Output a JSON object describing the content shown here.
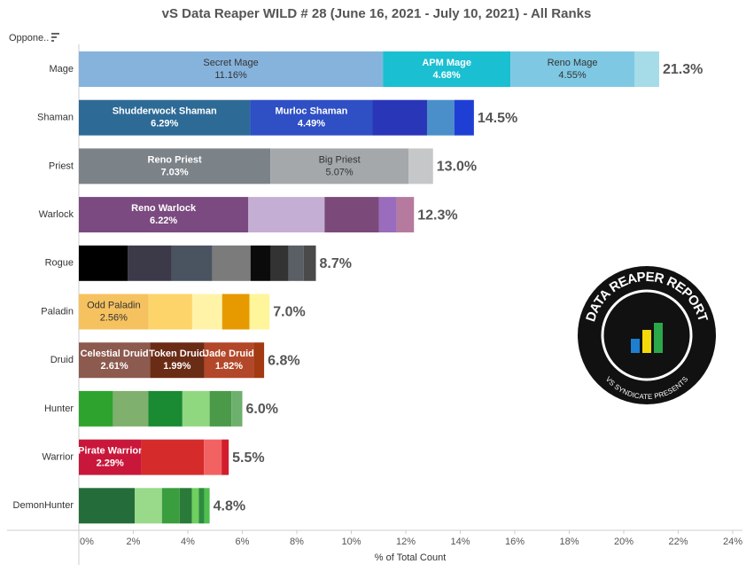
{
  "chart_data": {
    "type": "stacked_bar_horizontal",
    "title": "vS Data Reaper WILD # 28 (June 16, 2021 - July 10, 2021) - All Ranks",
    "sort_label": "Oppone..",
    "xlabel": "% of Total Count",
    "xlim": [
      0,
      24
    ],
    "xticks": [
      {
        "value": 0,
        "label": "0%"
      },
      {
        "value": 2,
        "label": "2%"
      },
      {
        "value": 4,
        "label": "4%"
      },
      {
        "value": 6,
        "label": "6%"
      },
      {
        "value": 8,
        "label": "8%"
      },
      {
        "value": 10,
        "label": "10%"
      },
      {
        "value": 12,
        "label": "12%"
      },
      {
        "value": 14,
        "label": "14%"
      },
      {
        "value": 16,
        "label": "16%"
      },
      {
        "value": 18,
        "label": "18%"
      },
      {
        "value": 20,
        "label": "20%"
      },
      {
        "value": 22,
        "label": "22%"
      },
      {
        "value": 24,
        "label": "24%"
      }
    ],
    "bars": [
      {
        "category": "Mage",
        "total": 21.3,
        "total_label": "21.3%",
        "segments": [
          {
            "name": "Secret Mage",
            "value": 11.16,
            "value_label": "11.16%",
            "color": "#86b3dc"
          },
          {
            "name": "APM Mage",
            "value": 4.68,
            "value_label": "4.68%",
            "color": "#1abfd1"
          },
          {
            "name": "Reno Mage",
            "value": 4.55,
            "value_label": "4.55%",
            "color": "#7ec8e3"
          },
          {
            "value": 0.91,
            "color": "#a6dbe8"
          }
        ]
      },
      {
        "category": "Shaman",
        "total": 14.5,
        "total_label": "14.5%",
        "segments": [
          {
            "name": "Shudderwock Shaman",
            "value": 6.29,
            "value_label": "6.29%",
            "color": "#2d6a96"
          },
          {
            "name": "Murloc Shaman",
            "value": 4.49,
            "value_label": "4.49%",
            "color": "#2f4fc4"
          },
          {
            "value": 2.0,
            "color": "#2a36b8"
          },
          {
            "value": 1.0,
            "color": "#4a8fc9"
          },
          {
            "value": 0.72,
            "color": "#1f3fd4"
          }
        ]
      },
      {
        "category": "Priest",
        "total": 13.0,
        "total_label": "13.0%",
        "segments": [
          {
            "name": "Reno Priest",
            "value": 7.03,
            "value_label": "7.03%",
            "color": "#7b8288"
          },
          {
            "name": "Big Priest",
            "value": 5.07,
            "value_label": "5.07%",
            "color": "#a4a8ab"
          },
          {
            "value": 0.9,
            "color": "#c5c7c9"
          }
        ]
      },
      {
        "category": "Warlock",
        "total": 12.3,
        "total_label": "12.3%",
        "segments": [
          {
            "name": "Reno Warlock",
            "value": 6.22,
            "value_label": "6.22%",
            "color": "#7b4a80"
          },
          {
            "value": 2.8,
            "color": "#c5aed3"
          },
          {
            "value": 2.0,
            "color": "#7b4a7a"
          },
          {
            "value": 0.65,
            "color": "#9a6cbd"
          },
          {
            "value": 0.63,
            "color": "#b57a9e"
          }
        ]
      },
      {
        "category": "Rogue",
        "total": 8.7,
        "total_label": "8.7%",
        "segments": [
          {
            "value": 1.8,
            "color": "#000000"
          },
          {
            "value": 1.6,
            "color": "#3c3a48"
          },
          {
            "value": 1.5,
            "color": "#4a5360"
          },
          {
            "value": 1.4,
            "color": "#7b7b7b"
          },
          {
            "value": 0.75,
            "color": "#0b0b0b"
          },
          {
            "value": 0.65,
            "color": "#333333"
          },
          {
            "value": 0.55,
            "color": "#5a5f66"
          },
          {
            "value": 0.45,
            "color": "#4a4a4a"
          }
        ]
      },
      {
        "category": "Paladin",
        "total": 7.0,
        "total_label": "7.0%",
        "segments": [
          {
            "name": "Odd Paladin",
            "value": 2.56,
            "value_label": "2.56%",
            "color": "#f6c25f"
          },
          {
            "value": 1.6,
            "color": "#fdd46a"
          },
          {
            "value": 1.1,
            "color": "#fff3a8"
          },
          {
            "value": 1.0,
            "color": "#e69a00"
          },
          {
            "value": 0.74,
            "color": "#fff59a"
          }
        ]
      },
      {
        "category": "Druid",
        "total": 6.8,
        "total_label": "6.8%",
        "segments": [
          {
            "name": "Celestial Druid",
            "value": 2.61,
            "value_label": "2.61%",
            "color": "#8c5a4e"
          },
          {
            "name": "Token Druid",
            "value": 1.99,
            "value_label": "1.99%",
            "color": "#6b2c16"
          },
          {
            "name": "Jade Druid",
            "value": 1.82,
            "value_label": "1.82%",
            "color": "#b34729"
          },
          {
            "value": 0.38,
            "color": "#a23a12"
          }
        ]
      },
      {
        "category": "Hunter",
        "total": 6.0,
        "total_label": "6.0%",
        "segments": [
          {
            "value": 1.25,
            "color": "#2ea42e"
          },
          {
            "value": 1.3,
            "color": "#7fb06e"
          },
          {
            "value": 1.25,
            "color": "#1a8a33"
          },
          {
            "value": 1.0,
            "color": "#90d880"
          },
          {
            "value": 0.8,
            "color": "#4a9a4a"
          },
          {
            "value": 0.4,
            "color": "#6db06d"
          }
        ]
      },
      {
        "category": "Warrior",
        "total": 5.5,
        "total_label": "5.5%",
        "segments": [
          {
            "name": "Pirate Warrior",
            "value": 2.29,
            "value_label": "2.29%",
            "color": "#c8173a"
          },
          {
            "value": 2.3,
            "color": "#d62b2b"
          },
          {
            "value": 0.65,
            "color": "#f26262"
          },
          {
            "value": 0.26,
            "color": "#d11d2d"
          }
        ]
      },
      {
        "category": "DemonHunter",
        "total": 4.8,
        "total_label": "4.8%",
        "segments": [
          {
            "value": 2.05,
            "color": "#246d3a"
          },
          {
            "value": 1.0,
            "color": "#98d98a"
          },
          {
            "value": 0.65,
            "color": "#3a9e3f"
          },
          {
            "value": 0.45,
            "color": "#2a7a3a"
          },
          {
            "value": 0.25,
            "color": "#6fcf5f"
          },
          {
            "value": 0.2,
            "color": "#2e8b3e"
          },
          {
            "value": 0.2,
            "color": "#4fbf4f"
          }
        ]
      }
    ],
    "logo": {
      "text": "DATA REAPER REPORT",
      "subtext": "VS SYNDICATE PRESENTS"
    }
  }
}
